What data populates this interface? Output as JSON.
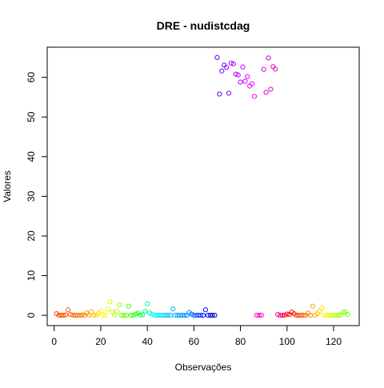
{
  "chart_data": {
    "type": "scatter",
    "title": "DRE - nudistcdag",
    "xlabel": "Observações",
    "ylabel": "Valores",
    "xlim": [
      -3,
      131
    ],
    "ylim": [
      -2.6,
      67.6
    ],
    "xticks": [
      0,
      20,
      40,
      60,
      80,
      100,
      120
    ],
    "yticks": [
      0,
      10,
      20,
      30,
      40,
      50,
      60
    ],
    "marker": "open-circle",
    "grid": false,
    "legend": "none",
    "points": [
      {
        "x": 1,
        "y": 0.4,
        "color": "#FF4000"
      },
      {
        "x": 2,
        "y": 0.0,
        "color": "#FF4500"
      },
      {
        "x": 3,
        "y": 0.0,
        "color": "#FF4A00"
      },
      {
        "x": 4,
        "y": 0.0,
        "color": "#FF5000"
      },
      {
        "x": 5,
        "y": 0.1,
        "color": "#FF5500"
      },
      {
        "x": 6,
        "y": 1.4,
        "color": "#FF5A00"
      },
      {
        "x": 7,
        "y": 0.2,
        "color": "#FF6000"
      },
      {
        "x": 8,
        "y": 0.0,
        "color": "#FF6500"
      },
      {
        "x": 9,
        "y": 0.0,
        "color": "#FF6A00"
      },
      {
        "x": 10,
        "y": 0.0,
        "color": "#FF7000"
      },
      {
        "x": 11,
        "y": 0.0,
        "color": "#FF7500"
      },
      {
        "x": 12,
        "y": 0.1,
        "color": "#FF7B00"
      },
      {
        "x": 13,
        "y": 0.0,
        "color": "#FF8000"
      },
      {
        "x": 14,
        "y": 0.6,
        "color": "#FF9000"
      },
      {
        "x": 15,
        "y": 0.1,
        "color": "#FFA000"
      },
      {
        "x": 16,
        "y": 0.9,
        "color": "#FFB000"
      },
      {
        "x": 17,
        "y": 0.0,
        "color": "#FFC000"
      },
      {
        "x": 18,
        "y": 0.0,
        "color": "#FFD000"
      },
      {
        "x": 19,
        "y": 0.5,
        "color": "#FFE000"
      },
      {
        "x": 20,
        "y": 1.0,
        "color": "#FFF000"
      },
      {
        "x": 21,
        "y": 0.1,
        "color": "#FFFF00"
      },
      {
        "x": 22,
        "y": 0.0,
        "color": "#F0FF00"
      },
      {
        "x": 23,
        "y": 1.5,
        "color": "#E0FF00"
      },
      {
        "x": 24,
        "y": 3.4,
        "color": "#D0FF00"
      },
      {
        "x": 25,
        "y": 0.8,
        "color": "#C0FF00"
      },
      {
        "x": 26,
        "y": 0.1,
        "color": "#B0FF00"
      },
      {
        "x": 27,
        "y": 1.0,
        "color": "#A0FF00"
      },
      {
        "x": 28,
        "y": 2.6,
        "color": "#90FF00"
      },
      {
        "x": 29,
        "y": 0.0,
        "color": "#80FF00"
      },
      {
        "x": 30,
        "y": 0.0,
        "color": "#70FF00"
      },
      {
        "x": 31,
        "y": 0.0,
        "color": "#60FF00"
      },
      {
        "x": 32,
        "y": 2.3,
        "color": "#50FF00"
      },
      {
        "x": 33,
        "y": 0.0,
        "color": "#40FF00"
      },
      {
        "x": 34,
        "y": 0.0,
        "color": "#30FF00"
      },
      {
        "x": 35,
        "y": 0.3,
        "color": "#20FF10"
      },
      {
        "x": 36,
        "y": 0.6,
        "color": "#10FF20"
      },
      {
        "x": 37,
        "y": 0.1,
        "color": "#00FF40"
      },
      {
        "x": 38,
        "y": 0.1,
        "color": "#00FF60"
      },
      {
        "x": 39,
        "y": 1.0,
        "color": "#00FF80"
      },
      {
        "x": 40,
        "y": 2.9,
        "color": "#00FFA0"
      },
      {
        "x": 41,
        "y": 0.6,
        "color": "#00FFC0"
      },
      {
        "x": 42,
        "y": 0.3,
        "color": "#00FFE0"
      },
      {
        "x": 43,
        "y": 0.0,
        "color": "#00FFFF"
      },
      {
        "x": 44,
        "y": 0.0,
        "color": "#00F0FF"
      },
      {
        "x": 45,
        "y": 0.0,
        "color": "#00E8FF"
      },
      {
        "x": 46,
        "y": 0.0,
        "color": "#00E0FF"
      },
      {
        "x": 47,
        "y": 0.0,
        "color": "#00D8FF"
      },
      {
        "x": 48,
        "y": 0.0,
        "color": "#00D0FF"
      },
      {
        "x": 49,
        "y": 0.0,
        "color": "#00C8FF"
      },
      {
        "x": 50,
        "y": 0.0,
        "color": "#00C0FF"
      },
      {
        "x": 51,
        "y": 1.6,
        "color": "#00B8FF"
      },
      {
        "x": 52,
        "y": 0.0,
        "color": "#00B0FF"
      },
      {
        "x": 53,
        "y": 0.0,
        "color": "#00A8FF"
      },
      {
        "x": 54,
        "y": 0.0,
        "color": "#00A0FF"
      },
      {
        "x": 55,
        "y": 0.0,
        "color": "#0098FF"
      },
      {
        "x": 56,
        "y": 0.0,
        "color": "#0090FF"
      },
      {
        "x": 57,
        "y": 0.0,
        "color": "#0088FF"
      },
      {
        "x": 58,
        "y": 0.7,
        "color": "#0080FF"
      },
      {
        "x": 59,
        "y": 0.3,
        "color": "#0070FF"
      },
      {
        "x": 60,
        "y": 0.0,
        "color": "#0060FF"
      },
      {
        "x": 61,
        "y": 0.0,
        "color": "#0050FF"
      },
      {
        "x": 62,
        "y": 0.0,
        "color": "#0040FF"
      },
      {
        "x": 63,
        "y": 0.0,
        "color": "#0030FF"
      },
      {
        "x": 64,
        "y": 0.0,
        "color": "#0020FF"
      },
      {
        "x": 65,
        "y": 1.4,
        "color": "#0010FF"
      },
      {
        "x": 66,
        "y": 0.0,
        "color": "#0000FF"
      },
      {
        "x": 67,
        "y": 0.0,
        "color": "#0000E8"
      },
      {
        "x": 68,
        "y": 0.0,
        "color": "#0000D8"
      },
      {
        "x": 69,
        "y": 0.0,
        "color": "#0000C8"
      },
      {
        "x": 70,
        "y": 65.0,
        "color": "#6000FF"
      },
      {
        "x": 71,
        "y": 55.8,
        "color": "#6A00FF"
      },
      {
        "x": 72,
        "y": 61.6,
        "color": "#7400FF"
      },
      {
        "x": 73,
        "y": 63.1,
        "color": "#7E00FF"
      },
      {
        "x": 74,
        "y": 62.5,
        "color": "#8800FF"
      },
      {
        "x": 75,
        "y": 56.0,
        "color": "#9200FF"
      },
      {
        "x": 76,
        "y": 63.6,
        "color": "#9C00FF"
      },
      {
        "x": 77,
        "y": 63.4,
        "color": "#A600FF"
      },
      {
        "x": 78,
        "y": 60.8,
        "color": "#B000FF"
      },
      {
        "x": 79,
        "y": 60.6,
        "color": "#BA00FF"
      },
      {
        "x": 80,
        "y": 58.8,
        "color": "#C400FF"
      },
      {
        "x": 81,
        "y": 62.6,
        "color": "#CE00FF"
      },
      {
        "x": 82,
        "y": 59.0,
        "color": "#D800FF"
      },
      {
        "x": 83,
        "y": 60.2,
        "color": "#E200FF"
      },
      {
        "x": 84,
        "y": 57.8,
        "color": "#EC00FF"
      },
      {
        "x": 85,
        "y": 58.4,
        "color": "#F600FF"
      },
      {
        "x": 86,
        "y": 55.2,
        "color": "#FF00F0"
      },
      {
        "x": 87,
        "y": 0.0,
        "color": "#FF00E0"
      },
      {
        "x": 88,
        "y": 0.0,
        "color": "#FF00D0"
      },
      {
        "x": 89,
        "y": 0.0,
        "color": "#FF00C0"
      },
      {
        "x": 90,
        "y": 62.0,
        "color": "#E000E0"
      },
      {
        "x": 91,
        "y": 56.2,
        "color": "#E800E8"
      },
      {
        "x": 92,
        "y": 64.9,
        "color": "#D000D8"
      },
      {
        "x": 93,
        "y": 57.0,
        "color": "#D800D0"
      },
      {
        "x": 94,
        "y": 62.7,
        "color": "#E000C8"
      },
      {
        "x": 95,
        "y": 62.1,
        "color": "#E800C0"
      },
      {
        "x": 96,
        "y": 0.2,
        "color": "#FF00A0"
      },
      {
        "x": 97,
        "y": 0.0,
        "color": "#FF0080"
      },
      {
        "x": 98,
        "y": 0.0,
        "color": "#FF0060"
      },
      {
        "x": 99,
        "y": 0.0,
        "color": "#FF0040"
      },
      {
        "x": 100,
        "y": 0.3,
        "color": "#FF0020"
      },
      {
        "x": 101,
        "y": 0.2,
        "color": "#FF0000"
      },
      {
        "x": 102,
        "y": 0.8,
        "color": "#FF1000"
      },
      {
        "x": 103,
        "y": 0.4,
        "color": "#FF2000"
      },
      {
        "x": 104,
        "y": 0.0,
        "color": "#FF3000"
      },
      {
        "x": 105,
        "y": 0.0,
        "color": "#FF4000"
      },
      {
        "x": 106,
        "y": 0.0,
        "color": "#FF5000"
      },
      {
        "x": 107,
        "y": 0.0,
        "color": "#FF6000"
      },
      {
        "x": 108,
        "y": 0.0,
        "color": "#FF7000"
      },
      {
        "x": 109,
        "y": 0.5,
        "color": "#FF8000"
      },
      {
        "x": 110,
        "y": 0.0,
        "color": "#FF9000"
      },
      {
        "x": 111,
        "y": 2.3,
        "color": "#FFA000"
      },
      {
        "x": 112,
        "y": 0.0,
        "color": "#FFB000"
      },
      {
        "x": 113,
        "y": 0.4,
        "color": "#FFC000"
      },
      {
        "x": 114,
        "y": 1.0,
        "color": "#FFD000"
      },
      {
        "x": 115,
        "y": 1.9,
        "color": "#FFE000"
      },
      {
        "x": 116,
        "y": 0.0,
        "color": "#FFF000"
      },
      {
        "x": 117,
        "y": 0.0,
        "color": "#F0FF00"
      },
      {
        "x": 118,
        "y": 0.0,
        "color": "#E0FF00"
      },
      {
        "x": 119,
        "y": 0.0,
        "color": "#D0FF00"
      },
      {
        "x": 120,
        "y": 0.0,
        "color": "#C0FF00"
      },
      {
        "x": 121,
        "y": 0.0,
        "color": "#B0FF00"
      },
      {
        "x": 122,
        "y": 0.0,
        "color": "#A0FF00"
      },
      {
        "x": 123,
        "y": 0.1,
        "color": "#90FF00"
      },
      {
        "x": 124,
        "y": 0.8,
        "color": "#80FF00"
      },
      {
        "x": 125,
        "y": 0.8,
        "color": "#70FF00"
      },
      {
        "x": 126,
        "y": 0.2,
        "color": "#60FF00"
      }
    ]
  }
}
